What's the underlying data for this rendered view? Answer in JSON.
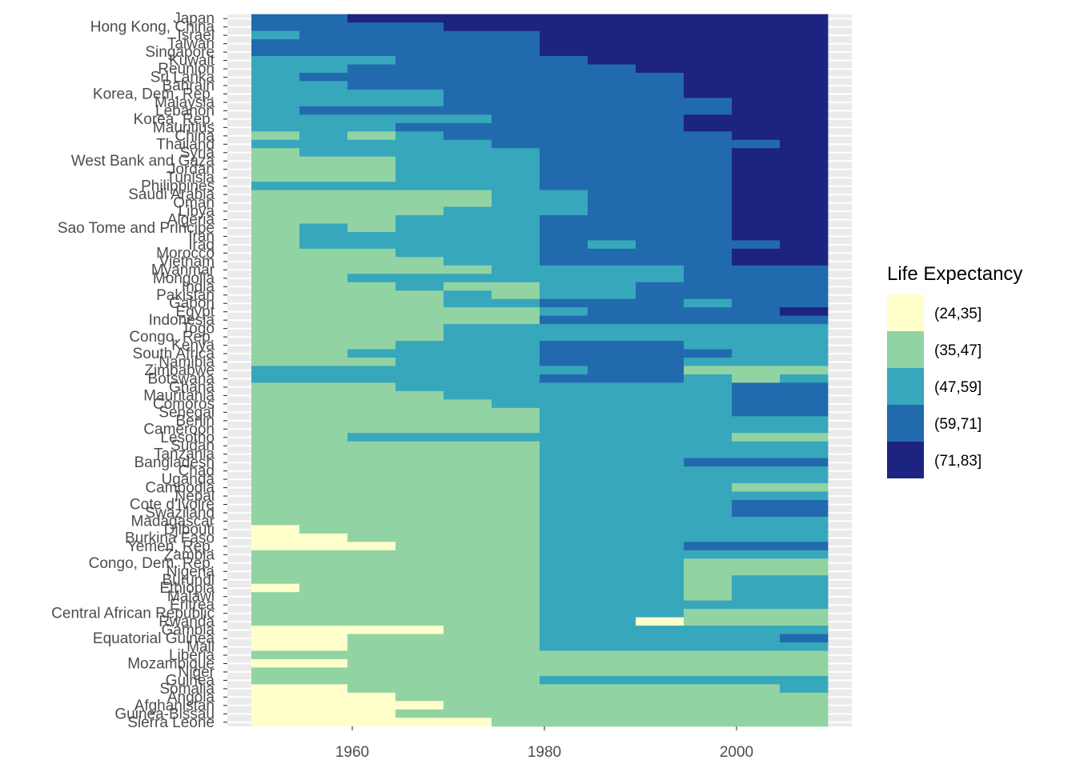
{
  "chart_data": {
    "type": "heatmap",
    "title": "",
    "xlabel": "",
    "ylabel": "",
    "x": [
      1952,
      1957,
      1962,
      1967,
      1972,
      1977,
      1982,
      1987,
      1992,
      1997,
      2002,
      2007
    ],
    "xlim": [
      1947,
      2012
    ],
    "x_ticks": [
      1960,
      1980,
      2000
    ],
    "x_tick_labels": [
      "1960",
      "1980",
      "2000"
    ],
    "countries": [
      "Japan",
      "Hong Kong, China",
      "Israel",
      "Taiwan",
      "Singapore",
      "Kuwait",
      "Reunion",
      "Sri Lanka",
      "Bahrain",
      "Korea, Dem. Rep.",
      "Malaysia",
      "Lebanon",
      "Korea, Rep.",
      "Mauritius",
      "China",
      "Thailand",
      "Syria",
      "West Bank and Gaza",
      "Jordan",
      "Tunisia",
      "Philippines",
      "Saudi Arabia",
      "Oman",
      "Libya",
      "Algeria",
      "Sao Tome and Principe",
      "Iran",
      "Iraq",
      "Morocco",
      "Vietnam",
      "Myanmar",
      "Mongolia",
      "India",
      "Pakistan",
      "Gabon",
      "Egypt",
      "Indonesia",
      "Togo",
      "Congo, Rep.",
      "Kenya",
      "South Africa",
      "Namibia",
      "Zimbabwe",
      "Botswana",
      "Ghana",
      "Mauritania",
      "Comoros",
      "Senegal",
      "Benin",
      "Cameroon",
      "Lesotho",
      "Sudan",
      "Tanzania",
      "Bangladesh",
      "Chad",
      "Uganda",
      "Cambodia",
      "Nepal",
      "Cote d'Ivoire",
      "Swaziland",
      "Madagascar",
      "Djibouti",
      "Burkina Faso",
      "Yemen, Rep.",
      "Zambia",
      "Congo, Dem. Rep.",
      "Nigeria",
      "Burundi",
      "Ethiopia",
      "Malawi",
      "Eritrea",
      "Central African Republic",
      "Rwanda",
      "Gambia",
      "Equatorial Guinea",
      "Mali",
      "Liberia",
      "Mozambique",
      "Niger",
      "Guinea",
      "Somalia",
      "Angola",
      "Afghanistan",
      "Guinea-Bissau",
      "Sierra Leone"
    ],
    "bins": [
      {
        "label": "(24,35]",
        "color": "#ffffcc"
      },
      {
        "label": "(35,47]",
        "color": "#91d3a3"
      },
      {
        "label": "(47,59]",
        "color": "#37a7bc"
      },
      {
        "label": "(59,71]",
        "color": "#226aae"
      },
      {
        "label": "(71,83]",
        "color": "#1d2380"
      }
    ],
    "grid": "horizontal-only",
    "legend": {
      "title": "Life Expectancy",
      "position": "right"
    },
    "rows": [
      "334444444444",
      "333344444444",
      "233333444444",
      "333333444444",
      "333333444444",
      "222333344444",
      "223333334444",
      "233333333444",
      "223333333444",
      "222233333444",
      "222233333344",
      "233333333344",
      "222223333444",
      "222333333444",
      "121233333344",
      "222223333334",
      "122222333344",
      "111222333344",
      "111222333344",
      "111222333344",
      "222222333344",
      "111112233344",
      "111112233344",
      "111122233344",
      "111222333344",
      "121222333344",
      "122222333344",
      "122222323334",
      "111222333344",
      "111122333344",
      "111112222333",
      "112222222333",
      "111211223333",
      "111121223333",
      "111122333233",
      "111111233334",
      "111111333333",
      "111122222222",
      "111122222222",
      "111222333222",
      "112222333322",
      "111222333222",
      "222222233111",
      "222222333212",
      "111222222233",
      "111122222233",
      "111112222233",
      "111111222233",
      "111111222222",
      "111111222222",
      "112222222211",
      "111111222222",
      "111111222222",
      "111111222333",
      "111111222222",
      "111111222222",
      "111111222211",
      "111111222222",
      "111111222233",
      "111111222233",
      "111111222222",
      "011111222222",
      "001111222222",
      "000111222333",
      "111111222222",
      "111111222111",
      "111111222111",
      "111111222122",
      "011111222122",
      "111111222122",
      "111111222222",
      "111111222111",
      "111111220111",
      "000011222222",
      "001111222223",
      "001111222222",
      "111111111111",
      "001111111111",
      "111111111111",
      "111111222222",
      "001111111112",
      "000111111111",
      "000011111111",
      "000111111111",
      "000001111111"
    ]
  }
}
